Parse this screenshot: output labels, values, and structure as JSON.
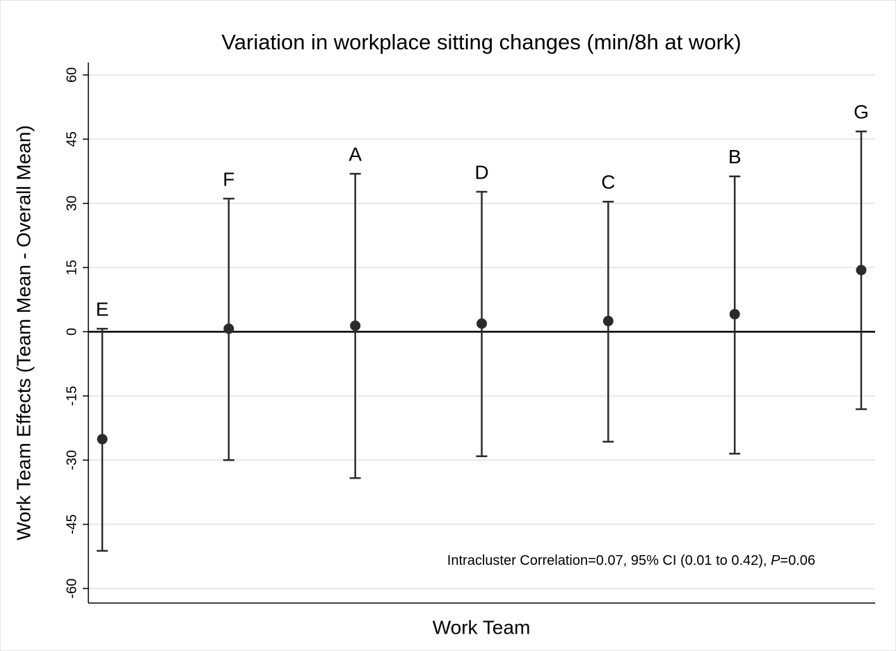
{
  "chart_data": {
    "type": "errorbar",
    "title": "Variation in workplace sitting changes (min/8h at work)",
    "y_label": "Work Team Effects (Team Mean - Overall Mean)",
    "x_label": "Work Team",
    "annotation": [
      "Intracluster Correlation=0.07, 95% CI (0.01 to 0.42), ",
      "P",
      "=0.06"
    ],
    "categories": [
      "E",
      "F",
      "A",
      "D",
      "C",
      "B",
      "G"
    ],
    "values": [
      -25.1,
      0.7,
      1.4,
      1.9,
      2.5,
      4.1,
      14.4
    ],
    "lower": [
      -51.2,
      -30,
      -34.2,
      -29.1,
      -25.7,
      -28.5,
      -18.1
    ],
    "upper": [
      0.7,
      31.1,
      36.9,
      32.7,
      30.4,
      36.3,
      46.8
    ],
    "reference_line": 0,
    "color": "#2b2b2b",
    "ylim": [
      -63.4,
      62.9
    ],
    "yticks": [
      -60,
      -45,
      -30,
      -15,
      0,
      15,
      30,
      45,
      60
    ],
    "grid": true
  }
}
